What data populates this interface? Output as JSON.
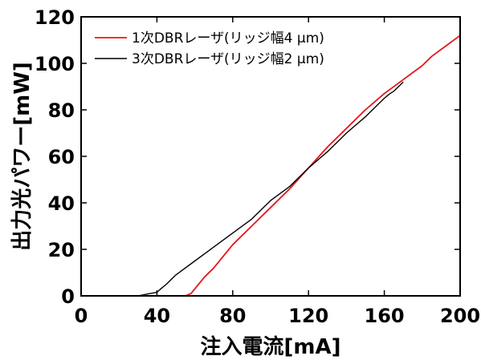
{
  "chart_data": {
    "type": "line",
    "xlabel": "注入電流[mA]",
    "ylabel": "出力光パワー[mW]",
    "xlim": [
      0,
      200
    ],
    "ylim": [
      0,
      120
    ],
    "xticks": [
      0,
      40,
      80,
      120,
      160,
      200
    ],
    "yticks": [
      0,
      20,
      40,
      60,
      80,
      100,
      120
    ],
    "grid": false,
    "legend_position": "top-left",
    "series": [
      {
        "name": "1次DBRレーザ(リッジ幅4 μm)",
        "color": "#e8141a",
        "x": [
          0,
          55,
          58,
          60,
          65,
          70,
          75,
          80,
          90,
          100,
          110,
          120,
          130,
          140,
          150,
          160,
          170,
          180,
          185,
          190,
          200
        ],
        "y": [
          0,
          0,
          1,
          3,
          8,
          12,
          17,
          22,
          30,
          38,
          46,
          55,
          64,
          72,
          80,
          87,
          93,
          99,
          103,
          106,
          112
        ]
      },
      {
        "name": "3次DBRレーザ(リッジ幅2 μm)",
        "color": "#000000",
        "x": [
          0,
          30,
          35,
          40,
          42,
          45,
          50,
          60,
          70,
          80,
          90,
          100,
          110,
          120,
          130,
          140,
          150,
          155,
          160,
          163,
          165,
          170
        ],
        "y": [
          0,
          0,
          0.8,
          1.5,
          3,
          5,
          9,
          15,
          21,
          27,
          33,
          41,
          47,
          55,
          62,
          70,
          77,
          81,
          85,
          87,
          88,
          92
        ]
      }
    ]
  }
}
